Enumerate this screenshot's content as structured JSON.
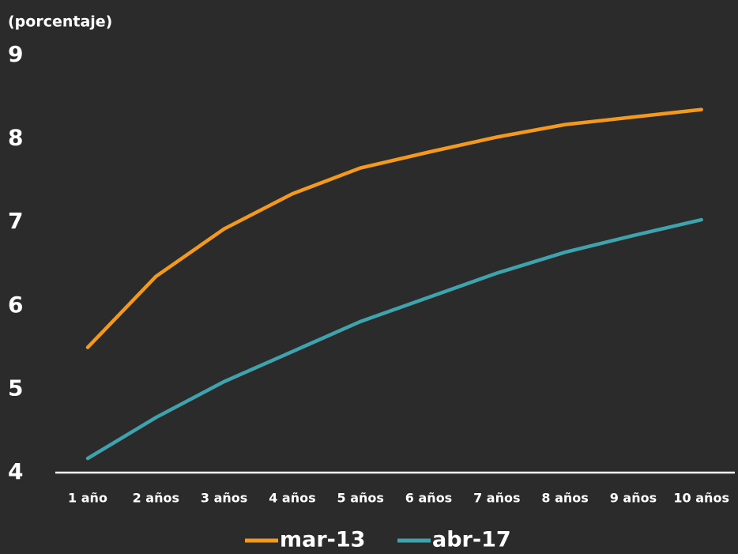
{
  "chart_data": {
    "type": "line",
    "y_label": "(porcentaje)",
    "categories": [
      "1 año",
      "2 años",
      "3 años",
      "4 años",
      "5 años",
      "6 años",
      "7 años",
      "8 años",
      "9 años",
      "10 años"
    ],
    "series": [
      {
        "name": "mar-13",
        "color": "#f39a1e",
        "values": [
          5.5,
          6.35,
          6.92,
          7.34,
          7.65,
          7.84,
          8.02,
          8.17,
          8.26,
          8.35
        ]
      },
      {
        "name": "abr-17",
        "color": "#3fa3ad",
        "values": [
          4.17,
          4.66,
          5.09,
          5.45,
          5.81,
          6.1,
          6.39,
          6.64,
          6.84,
          7.03
        ]
      }
    ],
    "ylim": [
      4,
      9
    ],
    "yticks": [
      4,
      5,
      6,
      7,
      8,
      9
    ],
    "grid": false,
    "legend": "bottom"
  }
}
